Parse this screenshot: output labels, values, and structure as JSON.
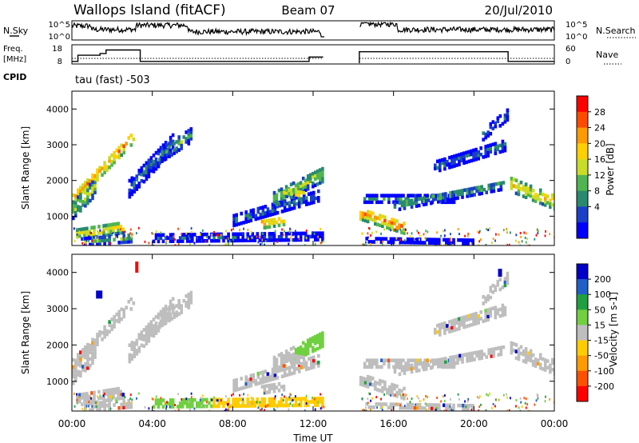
{
  "header": {
    "station": "Wallops Island (fitACF)",
    "beam": "Beam 07",
    "date": "20/Jul/2010"
  },
  "noise_panel": {
    "left_label": "N.Sky",
    "right_label": "N.Search",
    "left_ticks": [
      "10^5",
      "10^0"
    ],
    "right_ticks": [
      "10^5",
      "10^0"
    ]
  },
  "freq_panel": {
    "left_label_1": "Freq.",
    "left_label_2": "[MHz]",
    "right_label": "Nave",
    "left_ticks": [
      "18",
      "8"
    ],
    "right_ticks": [
      "60",
      "0"
    ]
  },
  "cpid": {
    "label": "CPID",
    "text": "tau (fast) -503"
  },
  "chart_data": [
    {
      "type": "heatmap",
      "name": "power",
      "ylabel": "Slant Range [km]",
      "yticks": [
        "4000",
        "3000",
        "2000",
        "1000"
      ],
      "colorbar": {
        "label": "Power [dB]",
        "ticks": [
          "28",
          "24",
          "20",
          "16",
          "12",
          "8",
          "4"
        ],
        "colors": [
          "#ff0000",
          "#ff4a00",
          "#ff9a00",
          "#ffd000",
          "#c8dc28",
          "#50b450",
          "#2a8a70",
          "#1a40c8",
          "#0000ff"
        ]
      }
    },
    {
      "type": "heatmap",
      "name": "velocity",
      "ylabel": "Slant Range [km]",
      "yticks": [
        "4000",
        "3000",
        "2000",
        "1000"
      ],
      "colorbar": {
        "label": "Velocity [m s-1]",
        "ticks": [
          "200",
          "100",
          "50",
          "15",
          "-15",
          "-50",
          "-100",
          "-200"
        ],
        "colors": [
          "#0000c8",
          "#2060c8",
          "#20a040",
          "#70d040",
          "#bebebe",
          "#ffcc00",
          "#ff9a00",
          "#ff5000",
          "#ff0000"
        ]
      }
    }
  ],
  "xaxis": {
    "label": "Time UT",
    "ticks": [
      "00:00",
      "04:00",
      "08:00",
      "12:00",
      "16:00",
      "20:00",
      "00:00"
    ]
  }
}
